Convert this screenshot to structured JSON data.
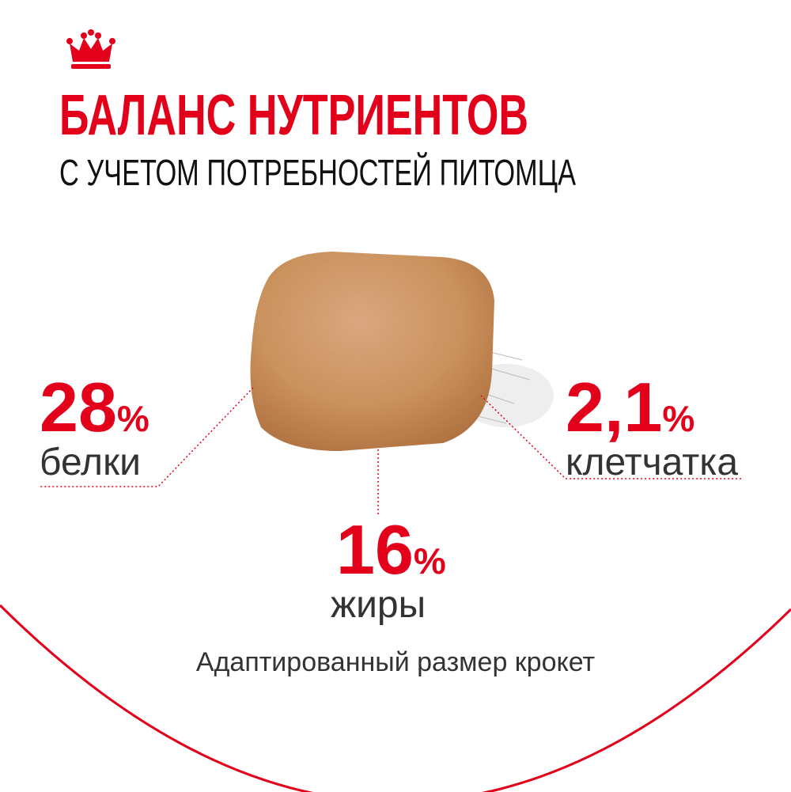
{
  "header": {
    "title": "БАЛАНС НУТРИЕНТОВ",
    "subtitle": "С УЧЕТОМ ПОТРЕБНОСТЕЙ ПИТОМЦА"
  },
  "nutrients": [
    {
      "value": "28",
      "unit": "%",
      "name": "белки"
    },
    {
      "value": "2,1",
      "unit": "%",
      "name": "клетчатка"
    },
    {
      "value": "16",
      "unit": "%",
      "name": "жиры"
    }
  ],
  "caption": "Адаптированный размер крокет"
}
